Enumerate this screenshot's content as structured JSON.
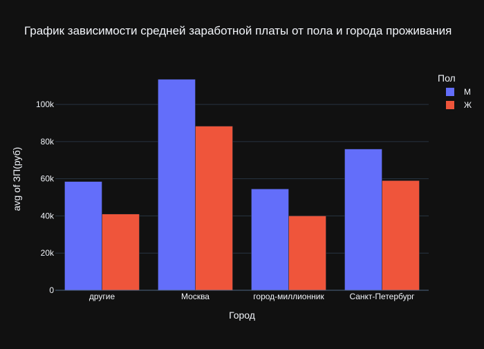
{
  "chart_data": {
    "type": "bar",
    "title": "График зависимости средней заработной платы от пола и города проживания",
    "xlabel": "Город",
    "ylabel": "avg of ЗП(руб)",
    "categories": [
      "другие",
      "Москва",
      "город-миллионник",
      "Санкт-Петербург"
    ],
    "series": [
      {
        "name": "М",
        "values": [
          58500,
          113500,
          54500,
          76000
        ],
        "color": "#636efa"
      },
      {
        "name": "Ж",
        "values": [
          41000,
          88300,
          40000,
          59000
        ],
        "color": "#ef553b"
      }
    ],
    "ylim": [
      0,
      119000
    ],
    "yticks": [
      0,
      20000,
      40000,
      60000,
      80000,
      100000
    ],
    "ytick_labels": [
      "0",
      "20k",
      "40k",
      "60k",
      "80k",
      "100k"
    ],
    "grid": true,
    "legend": {
      "title": "Пол",
      "position": "top-right"
    },
    "colors": {
      "background": "#111111",
      "grid": "#283442",
      "text": "#f2f5fa"
    }
  }
}
